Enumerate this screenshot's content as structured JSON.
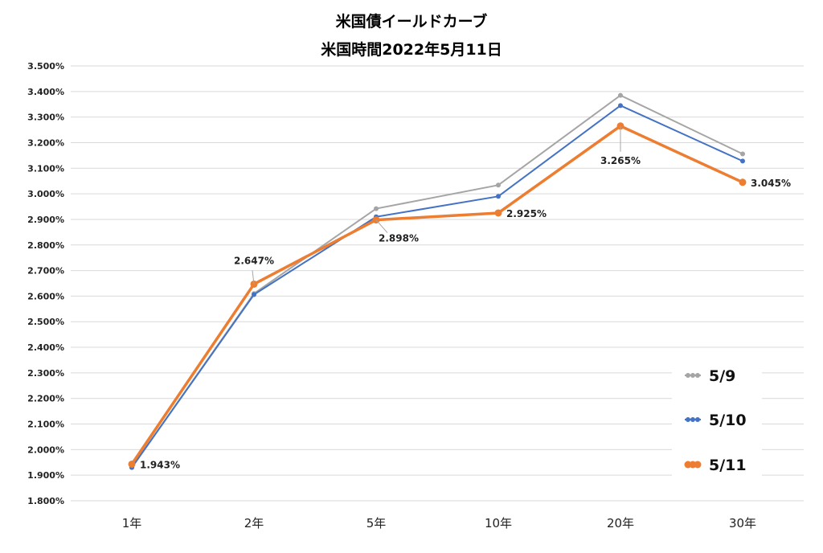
{
  "chart_data": {
    "type": "line",
    "title": "米国債イールドカーブ",
    "subtitle": "米国時間2022年5月11日",
    "categories": [
      "1年",
      "2年",
      "5年",
      "10年",
      "20年",
      "30年"
    ],
    "ylim": [
      1.8,
      3.5
    ],
    "ytick_step": 0.1,
    "ytick_format": "percent_3dp",
    "grid": true,
    "legend_position": "bottom-right",
    "series": [
      {
        "name": "5/9",
        "color": "#a5a5a5",
        "values": [
          1.93,
          2.61,
          2.942,
          3.034,
          3.385,
          3.156
        ],
        "line_width": 2,
        "marker_r": 3
      },
      {
        "name": "5/10",
        "color": "#4472c4",
        "values": [
          1.93,
          2.606,
          2.91,
          2.99,
          3.345,
          3.128
        ],
        "line_width": 2,
        "marker_r": 3
      },
      {
        "name": "5/11",
        "color": "#ed7d31",
        "values": [
          1.943,
          2.647,
          2.898,
          2.925,
          3.265,
          3.045
        ],
        "line_width": 3.5,
        "marker_r": 4.5
      }
    ],
    "data_labels": [
      {
        "series": "5/11",
        "index": 0,
        "text": "1.943%"
      },
      {
        "series": "5/11",
        "index": 1,
        "text": "2.647%"
      },
      {
        "series": "5/11",
        "index": 2,
        "text": "2.898%"
      },
      {
        "series": "5/11",
        "index": 3,
        "text": "2.925%"
      },
      {
        "series": "5/11",
        "index": 4,
        "text": "3.265%"
      },
      {
        "series": "5/11",
        "index": 5,
        "text": "3.045%"
      }
    ]
  }
}
